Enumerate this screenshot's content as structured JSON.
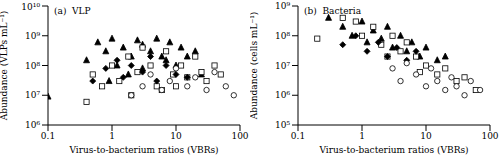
{
  "chart_data": [
    {
      "type": "scatter",
      "title": "(a)  VLP",
      "x_label": "Virus-to-bacterium ratios (VBRs)",
      "y_label": "Abundance (VLPs mL⁻¹)",
      "log": true,
      "grid": false,
      "xlim": [
        0.1,
        100
      ],
      "xticks": [
        0.1,
        1,
        10,
        100
      ],
      "ylim": [
        1000000,
        10000000000
      ],
      "yticks": [
        {
          "value": 1000000,
          "label": "10⁶"
        },
        {
          "value": 10000000,
          "label": "10⁷"
        },
        {
          "value": 100000000,
          "label": "10⁸"
        },
        {
          "value": 1000000000,
          "label": "10⁹"
        },
        {
          "value": 10000000000,
          "label": "10¹⁰"
        }
      ],
      "series": [
        {
          "marker": "triangle",
          "color": "#000000",
          "x": [
            0.1,
            0.4,
            0.6,
            0.8,
            1,
            1.2,
            1.5,
            2,
            2.5,
            3,
            4,
            5,
            6,
            8,
            10,
            12,
            15,
            20,
            25,
            3,
            1.8,
            0.9,
            7
          ],
          "values": [
            9000000.0,
            150000000.0,
            600000000.0,
            300000000.0,
            800000000.0,
            100000000.0,
            400000000.0,
            200000000.0,
            700000000.0,
            500000000.0,
            300000000.0,
            800000000.0,
            200000000.0,
            600000000.0,
            100000000.0,
            400000000.0,
            200000000.0,
            300000000.0,
            50000000.0,
            80000000.0,
            50000000.0,
            30000000.0,
            150000000.0
          ]
        },
        {
          "marker": "square_open",
          "color": "#000000",
          "x": [
            0.4,
            0.5,
            0.7,
            1,
            1.3,
            1.8,
            2.5,
            3,
            4,
            5,
            7,
            9,
            12,
            15,
            20,
            25,
            30,
            40,
            50,
            2,
            6,
            10
          ],
          "values": [
            6000000.0,
            50000000.0,
            20000000.0,
            100000000.0,
            30000000.0,
            200000000.0,
            60000000.0,
            400000000.0,
            100000000.0,
            20000000.0,
            300000000.0,
            50000000.0,
            100000000.0,
            40000000.0,
            200000000.0,
            60000000.0,
            30000000.0,
            100000000.0,
            50000000.0,
            10000000.0,
            15000000.0,
            20000000.0
          ]
        },
        {
          "marker": "diamond",
          "color": "#000000",
          "x": [
            0.5,
            0.8,
            1.2,
            1.5,
            2,
            3,
            4,
            5,
            7,
            10,
            15
          ],
          "values": [
            30000000.0,
            80000000.0,
            150000000.0,
            40000000.0,
            100000000.0,
            60000000.0,
            200000000.0,
            30000000.0,
            100000000.0,
            50000000.0,
            40000000.0
          ]
        },
        {
          "marker": "circle_open",
          "color": "#000000",
          "x": [
            2,
            3,
            4,
            6,
            8,
            10,
            15,
            20,
            30,
            40,
            60,
            80
          ],
          "values": [
            10000000.0,
            20000000.0,
            50000000.0,
            15000000.0,
            30000000.0,
            80000000.0,
            20000000.0,
            40000000.0,
            15000000.0,
            60000000.0,
            20000000.0,
            10000000.0
          ]
        }
      ]
    },
    {
      "type": "scatter",
      "title": "(b)  Bacteria",
      "x_label": "Virus-to-bacterium ratios (VBRs)",
      "y_label": "Abundance (cells mL⁻¹)",
      "log": true,
      "grid": false,
      "xlim": [
        0.1,
        100
      ],
      "xticks": [
        0.1,
        1,
        10,
        100
      ],
      "ylim": [
        100000,
        1000000000
      ],
      "yticks": [
        {
          "value": 100000,
          "label": "10⁵"
        },
        {
          "value": 1000000,
          "label": "10⁶"
        },
        {
          "value": 10000000,
          "label": "10⁷"
        },
        {
          "value": 100000000,
          "label": "10⁸"
        },
        {
          "value": 1000000000,
          "label": "10⁹"
        }
      ],
      "series": [
        {
          "marker": "triangle",
          "color": "#000000",
          "x": [
            0.3,
            0.5,
            0.7,
            1,
            1.2,
            1.5,
            2,
            2.5,
            3,
            4,
            5,
            6,
            8,
            10,
            15,
            20
          ],
          "values": [
            400000000.0,
            200000000.0,
            100000000.0,
            300000000.0,
            60000000.0,
            150000000.0,
            80000000.0,
            200000000.0,
            40000000.0,
            100000000.0,
            30000000.0,
            60000000.0,
            20000000.0,
            40000000.0,
            15000000.0,
            20000000.0
          ]
        },
        {
          "marker": "square_open",
          "color": "#000000",
          "x": [
            0.2,
            0.5,
            0.8,
            1,
            1.5,
            2,
            3,
            4,
            5,
            7,
            10,
            15,
            20,
            30,
            40,
            60,
            2.5,
            8
          ],
          "values": [
            80000000.0,
            400000000.0,
            300000000.0,
            100000000.0,
            200000000.0,
            50000000.0,
            100000000.0,
            30000000.0,
            60000000.0,
            20000000.0,
            10000000.0,
            5000000.0,
            8000000.0,
            3000000.0,
            4000000.0,
            1500000.0,
            20000000.0,
            6000000.0
          ]
        },
        {
          "marker": "diamond",
          "color": "#000000",
          "x": [
            0.5,
            0.8,
            1.2,
            1.8,
            2.5,
            3.5,
            5,
            7
          ],
          "values": [
            50000000.0,
            100000000.0,
            30000000.0,
            60000000.0,
            20000000.0,
            40000000.0,
            15000000.0,
            30000000.0
          ]
        },
        {
          "marker": "circle_open",
          "color": "#000000",
          "x": [
            3,
            4,
            5,
            7,
            10,
            12,
            15,
            20,
            25,
            30,
            40,
            50,
            70
          ],
          "values": [
            8000000.0,
            3000000.0,
            12000000.0,
            5000000.0,
            2000000.0,
            8000000.0,
            3000000.0,
            1500000.0,
            4000000.0,
            2000000.0,
            1000000.0,
            3000000.0,
            1500000.0
          ]
        }
      ]
    }
  ]
}
